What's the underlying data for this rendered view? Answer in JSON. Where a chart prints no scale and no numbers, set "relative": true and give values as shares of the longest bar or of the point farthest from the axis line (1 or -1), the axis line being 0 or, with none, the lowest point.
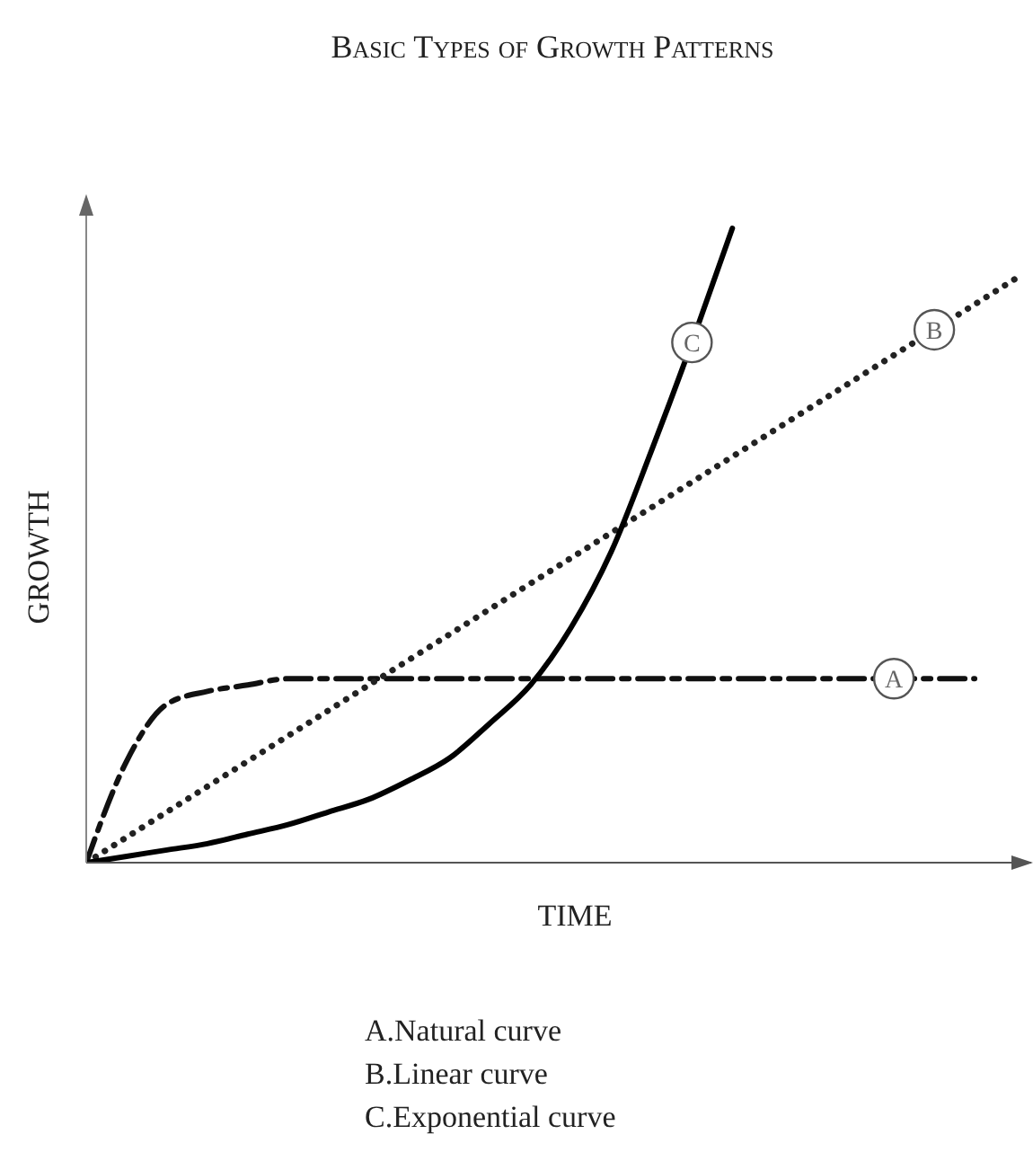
{
  "chart_data": {
    "type": "line",
    "title": "Basic Types of Growth Patterns",
    "xlabel": "TIME",
    "ylabel": "GROWTH",
    "relative": true,
    "categories": [
      null,
      null,
      null,
      null,
      null,
      null,
      null,
      null,
      null,
      null,
      null,
      null,
      null,
      null,
      null,
      null,
      null,
      null,
      null,
      null,
      null,
      null,
      null,
      null
    ],
    "series": [
      {
        "name": "A",
        "color": "#111111",
        "line_style": "dashed",
        "values": [
          0,
          0.16,
          0.25,
          0.27,
          0.28,
          0.29,
          0.29,
          0.29,
          0.29,
          0.29,
          0.29,
          0.29,
          0.29,
          0.29,
          0.29,
          0.29,
          0.29,
          0.29,
          0.29,
          0.29,
          0.29,
          0.29,
          0.29,
          null
        ]
      },
      {
        "name": "B",
        "color": "#222222",
        "line_style": "dotted",
        "values": [
          0,
          0.04,
          0.08,
          0.12,
          0.16,
          0.2,
          0.24,
          0.28,
          0.32,
          0.36,
          0.4,
          0.44,
          0.48,
          0.52,
          0.56,
          0.6,
          0.64,
          0.68,
          0.72,
          0.76,
          0.8,
          0.84,
          0.88,
          0.92
        ]
      },
      {
        "name": "C",
        "color": "#000000",
        "line_style": "solid",
        "values": [
          0,
          0.01,
          0.02,
          0.03,
          0.045,
          0.06,
          0.08,
          0.1,
          0.13,
          0.165,
          0.22,
          0.28,
          0.37,
          0.49,
          0.65,
          0.82,
          1,
          null,
          null,
          null,
          null,
          null,
          null,
          null
        ]
      }
    ],
    "grid": false,
    "legend": false,
    "marker": "none",
    "annotations": [
      "A.Natural curve",
      "B.Linear curve",
      "C.Exponential curve"
    ]
  }
}
